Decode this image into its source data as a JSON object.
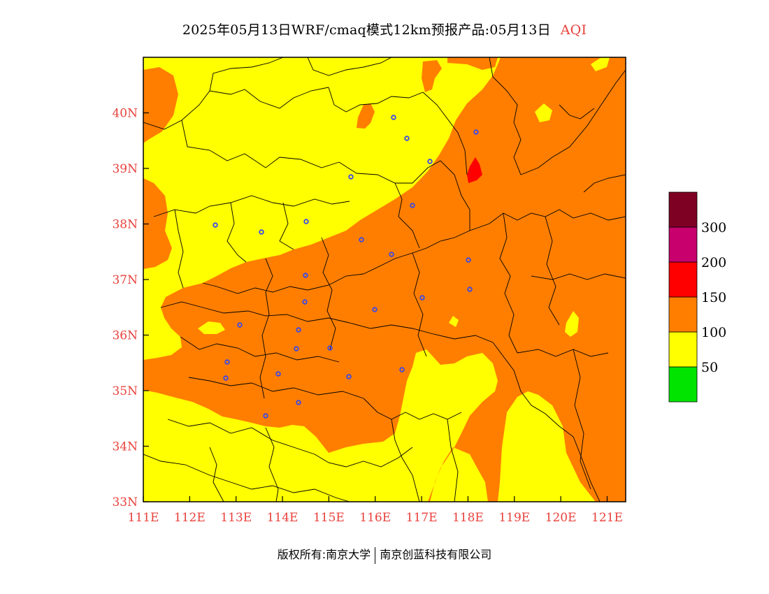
{
  "title": {
    "text": "2025年05月13日WRF/cmaq模式12km预报产品:05月13日",
    "product": "AQI"
  },
  "map": {
    "lon_range": [
      111,
      121.4
    ],
    "lat_range": [
      33,
      41
    ],
    "lon_ticks": [
      "111E",
      "112E",
      "113E",
      "114E",
      "115E",
      "116E",
      "117E",
      "118E",
      "119E",
      "120E",
      "121E"
    ],
    "lat_ticks": [
      "33N",
      "34N",
      "35N",
      "36N",
      "37N",
      "38N",
      "39N",
      "40N"
    ],
    "colors": {
      "good": "#00e400",
      "moderate": "#ffff00",
      "usg": "#ff7e00",
      "unhealthy": "#ff0000",
      "very_unhealthy": "#c8006e",
      "hazardous": "#7e0023"
    },
    "city_marker_color": "#3b48e8"
  },
  "legend": {
    "thresholds": [
      "50",
      "100",
      "150",
      "200",
      "300"
    ],
    "colors": [
      "#00e400",
      "#ffff00",
      "#ff7e00",
      "#ff0000",
      "#c8006e",
      "#7e0023"
    ]
  },
  "footer": {
    "left": "版权所有:南京大学",
    "right": "南京创蓝科技有限公司"
  }
}
